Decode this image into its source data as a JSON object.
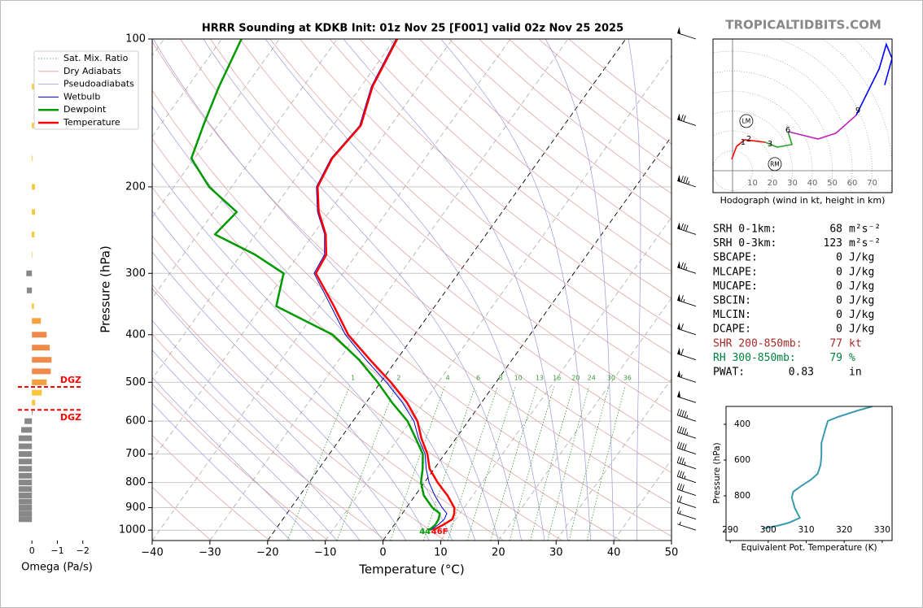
{
  "site": "TROPICALTIDBITS.COM",
  "stats": [
    {
      "label": "SRH 0-1km:",
      "value": 68,
      "unit": "m²s⁻²"
    },
    {
      "label": "SRH 0-3km:",
      "value": 123,
      "unit": "m²s⁻²"
    },
    {
      "label": "SBCAPE:",
      "value": 0,
      "unit": "J/kg"
    },
    {
      "label": "MLCAPE:",
      "value": 0,
      "unit": "J/kg"
    },
    {
      "label": "MUCAPE:",
      "value": 0,
      "unit": "J/kg"
    },
    {
      "label": "SBCIN:",
      "value": 0,
      "unit": "J/kg"
    },
    {
      "label": "MLCIN:",
      "value": 0,
      "unit": "J/kg"
    },
    {
      "label": "DCAPE:",
      "value": 0,
      "unit": "J/kg"
    },
    {
      "label": "SHR 200-850mb:",
      "value": 77,
      "unit": "kt",
      "color": "#a52a2a"
    },
    {
      "label": "RH 300-850mb:",
      "value": 79,
      "unit": "%",
      "color": "#008040"
    },
    {
      "label": "PWAT:",
      "value": 0.83,
      "unit": "in"
    }
  ],
  "chart_data": [
    {
      "type": "skewt",
      "title": "HRRR Sounding at KDKB Init: 01z Nov 25 [F001] valid 02z Nov 25 2025",
      "xlabel": "Temperature (°C)",
      "ylabel": "Pressure (hPa)",
      "xlim": [
        -40,
        50
      ],
      "xticks": [
        {
          "value": -40,
          "label": "−40"
        },
        {
          "value": -30,
          "label": "−30"
        },
        {
          "value": -20,
          "label": "−20"
        },
        {
          "value": -10,
          "label": "−10"
        },
        0,
        10,
        20,
        30,
        40,
        50
      ],
      "ylim": [
        1050,
        100
      ],
      "log_y": true,
      "grid": true,
      "yticks": [
        100,
        200,
        300,
        400,
        500,
        600,
        700,
        800,
        900,
        1000
      ],
      "pressure": [
        1000,
        975,
        950,
        925,
        900,
        850,
        800,
        750,
        700,
        650,
        600,
        550,
        500,
        450,
        400,
        350,
        300,
        275,
        250,
        225,
        200,
        175,
        150,
        125,
        100
      ],
      "reference_lines": [
        {
          "name": "Sat. Mix. Ratio",
          "color": "#3a9a3a",
          "style": "dotted"
        },
        {
          "name": "Dry Adiabats",
          "color": "#dd9a9a",
          "style": "solid"
        },
        {
          "name": "Pseudoadiabats",
          "color": "#9a9ad8",
          "style": "solid"
        }
      ],
      "series": [
        {
          "name": "Wetbulb",
          "color": "#0000cc",
          "linewidth": 1,
          "values": [
            7.0,
            7.6,
            8.0,
            7.7,
            6.2,
            3.4,
            0.8,
            -1.4,
            -3.4,
            -6.5,
            -9.4,
            -13.7,
            -19.0,
            -25.3,
            -32.0,
            -38.0,
            -45.0,
            -45.5,
            -48.0,
            -52.0,
            -55.3,
            -56.3,
            -55.4,
            -58.2,
            -59.8
          ]
        },
        {
          "name": "Dewpoint",
          "color": "#009900",
          "linewidth": 2.5,
          "values": [
            6.7,
            7.1,
            7.0,
            6.5,
            4.5,
            1.5,
            -0.6,
            -2.0,
            -3.8,
            -7.0,
            -10.5,
            -15.5,
            -20.5,
            -26.5,
            -34.2,
            -47.5,
            -50.3,
            -57.5,
            -67.0,
            -66.0,
            -73.9,
            -80.5,
            -82.5,
            -84.6,
            -86.6
          ]
        },
        {
          "name": "Temperature",
          "color": "#ff0000",
          "linewidth": 2.5,
          "values": [
            7.4,
            8.5,
            9.4,
            9.0,
            8.3,
            5.6,
            2.3,
            -0.8,
            -3.0,
            -6.0,
            -8.8,
            -12.9,
            -18.2,
            -24.6,
            -31.5,
            -37.5,
            -44.7,
            -45.2,
            -47.8,
            -51.8,
            -55.1,
            -56.1,
            -55.2,
            -58.0,
            -59.6
          ]
        }
      ],
      "mixing_ratios": [
        1,
        2,
        4,
        6,
        8,
        10,
        13,
        16,
        20,
        24,
        30,
        36
      ],
      "surface_labels": [
        {
          "text": "44",
          "color": "#00a000"
        },
        {
          "text": "46F",
          "color": "#ff0000"
        }
      ],
      "wind_barbs": {
        "pressure": [
          1000,
          950,
          900,
          850,
          800,
          750,
          700,
          650,
          600,
          550,
          500,
          450,
          400,
          350,
          300,
          250,
          200,
          150,
          100
        ],
        "speed": [
          5,
          15,
          20,
          30,
          35,
          35,
          40,
          45,
          45,
          50,
          55,
          60,
          60,
          65,
          75,
          80,
          85,
          70,
          50
        ]
      }
    },
    {
      "type": "hbar",
      "xlabel": "Omega (Pa/s)",
      "xlim": [
        0.55,
        -2.2
      ],
      "xticks": [
        0,
        {
          "value": -1,
          "label": "−1"
        },
        {
          "value": -2,
          "label": "−2"
        }
      ],
      "ylim": [
        1050,
        100
      ],
      "pressure": [
        125,
        150,
        175,
        200,
        225,
        250,
        275,
        300,
        325,
        350,
        375,
        400,
        425,
        450,
        475,
        500,
        525,
        550,
        575,
        600,
        625,
        650,
        675,
        700,
        725,
        750,
        775,
        800,
        825,
        850,
        875,
        900,
        925,
        950
      ],
      "values": [
        -0.07,
        -0.07,
        -0.03,
        -0.12,
        -0.12,
        -0.1,
        -0.02,
        0.22,
        0.2,
        -0.08,
        -0.35,
        -0.58,
        -0.7,
        -0.77,
        -0.74,
        -0.58,
        -0.39,
        -0.13,
        -0.03,
        0.29,
        0.42,
        0.52,
        0.52,
        0.52,
        0.52,
        0.52,
        0.52,
        0.52,
        0.52,
        0.52,
        0.52,
        0.52,
        0.52,
        0.52
      ],
      "colors": [
        "#f9c63a",
        "#f9c63a",
        "#f9c63a",
        "#f9c63a",
        "#f9c63a",
        "#f9c63a",
        "#f9c63a",
        "#888888",
        "#888888",
        "#f9c63a",
        "#f7a040",
        "#ef8a4a",
        "#ef8a4a",
        "#ef8a4a",
        "#ef8a4a",
        "#f7a040",
        "#f9c63a",
        "#f9c63a",
        "#888888",
        "#888888",
        "#888888",
        "#888888",
        "#888888",
        "#888888",
        "#888888",
        "#888888",
        "#888888",
        "#888888",
        "#888888",
        "#888888",
        "#888888",
        "#888888",
        "#888888",
        "#888888"
      ],
      "dgz": {
        "label": "DGZ",
        "color": "#ff0000",
        "pressures": [
          511,
          569
        ]
      }
    },
    {
      "type": "hodograph",
      "caption": "Hodograph (wind in kt, height in km)",
      "xlim": [
        -9.8,
        80
      ],
      "ylim": [
        -11,
        66
      ],
      "xticks": [
        10,
        20,
        30,
        40,
        50,
        60,
        70
      ],
      "segments": [
        {
          "color": "#ff0000",
          "u": [
            -0.4,
            2.0,
            6.1,
            16.3
          ],
          "v": [
            5.7,
            12.2,
            15.5,
            14.3
          ]
        },
        {
          "color": "#2ca02c",
          "u": [
            16.3,
            22.4,
            29.8,
            27.8
          ],
          "v": [
            14.3,
            11.8,
            13.1,
            19.6
          ]
        },
        {
          "color": "#c020c0",
          "u": [
            27.8,
            42.9,
            51.8,
            62.0
          ],
          "v": [
            19.6,
            15.9,
            18.8,
            27.8
          ]
        },
        {
          "color": "#0000ff",
          "u": [
            62.0,
            73.5,
            77.1,
            80.0,
            76.3
          ],
          "v": [
            27.8,
            51.0,
            63.3,
            56.3,
            42.9
          ]
        }
      ],
      "height_labels": [
        {
          "label": "1",
          "u": 5.3,
          "v": 14.3
        },
        {
          "label": "2",
          "u": 8.2,
          "v": 15.9
        },
        {
          "label": "3",
          "u": 18.8,
          "v": 13.5
        },
        {
          "label": "6",
          "u": 27.8,
          "v": 20.4
        },
        {
          "label": "9",
          "u": 62.9,
          "v": 30.2
        }
      ],
      "storm_motion": [
        {
          "label": "LM",
          "u": 6.9,
          "v": 24.9
        },
        {
          "label": "RM",
          "u": 21.2,
          "v": 3.3
        }
      ]
    },
    {
      "type": "line",
      "xlabel": "Equivalent Pot. Temperature (K)",
      "ylabel": "Pressure (hPa)",
      "xlim": [
        288.9,
        332.6
      ],
      "xticks": [
        290,
        300,
        310,
        320,
        330
      ],
      "ylim": [
        1050,
        300
      ],
      "yticks": [
        400,
        600,
        800
      ],
      "color": "#3a9ab0",
      "pressure": [
        300,
        322.7,
        359,
        382,
        436,
        505,
        573,
        627,
        677,
        709,
        745,
        777,
        809,
        868,
        923,
        950,
        968,
        982
      ],
      "values": [
        327.4,
        323.6,
        318.3,
        315.7,
        314.9,
        314.0,
        314.0,
        313.8,
        313.0,
        311.3,
        308.7,
        306.6,
        306.2,
        307.0,
        308.3,
        305.5,
        302.3,
        298.7
      ]
    }
  ]
}
